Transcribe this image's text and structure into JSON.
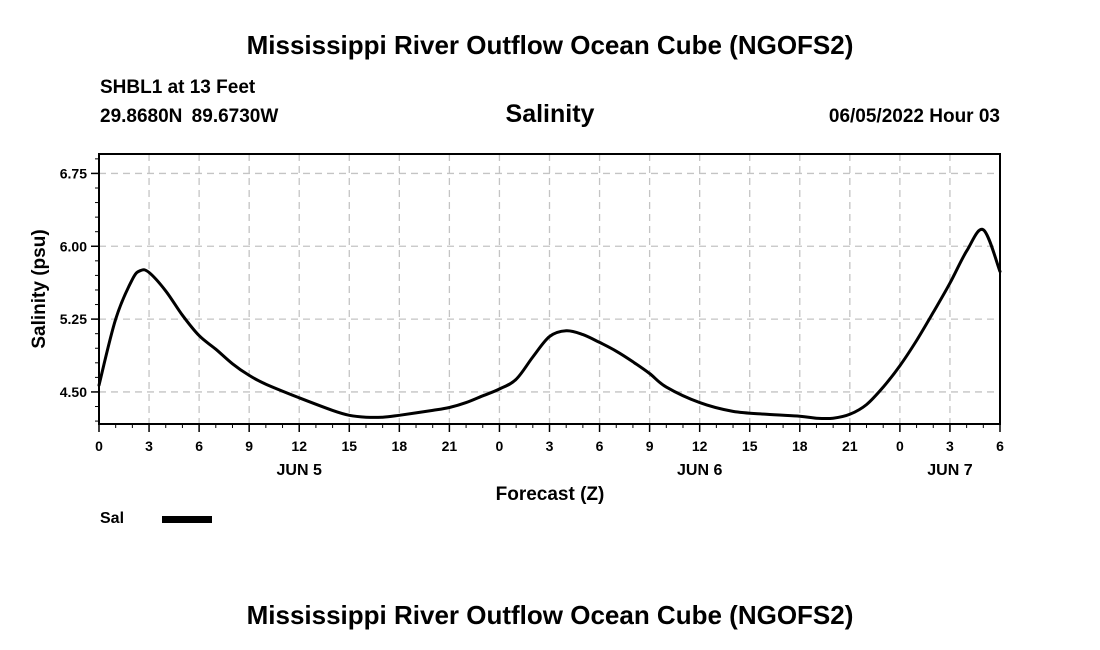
{
  "page": {
    "top_title": "Mississippi River Outflow Ocean Cube (NGOFS2)",
    "bottom_title": "Mississippi River Outflow Ocean Cube (NGOFS2)",
    "station": "SHBL1 at 13 Feet",
    "coordinates": "29.8680N  89.6730W",
    "datetime": "06/05/2022 Hour 03"
  },
  "chart_data": {
    "type": "line",
    "title": "Salinity",
    "xlabel": "Forecast (Z)",
    "ylabel": "Salinity (psu)",
    "xlim": [
      0,
      54
    ],
    "ylim": [
      4.17,
      6.95
    ],
    "x_ticks": [
      0,
      3,
      6,
      9,
      12,
      15,
      18,
      21,
      24,
      27,
      30,
      33,
      36,
      39,
      42,
      45,
      48,
      51,
      54
    ],
    "x_tick_labels": [
      "0",
      "3",
      "6",
      "9",
      "12",
      "15",
      "18",
      "21",
      "0",
      "3",
      "6",
      "9",
      "12",
      "15",
      "18",
      "21",
      "0",
      "3",
      "6"
    ],
    "y_ticks": [
      4.5,
      5.25,
      6.0,
      6.75
    ],
    "y_tick_labels": [
      "4.50",
      "5.25",
      "6.00",
      "6.75"
    ],
    "date_labels": [
      {
        "x": 12,
        "label": "JUN 5"
      },
      {
        "x": 36,
        "label": "JUN 6"
      },
      {
        "x": 51,
        "label": "JUN 7"
      }
    ],
    "grid": true,
    "series": [
      {
        "name": "Sal",
        "x": [
          0,
          1,
          2,
          2.5,
          3,
          4,
          5,
          6,
          7,
          8,
          9,
          10,
          12,
          14,
          15,
          16,
          17,
          18,
          20,
          21,
          22,
          23,
          24,
          25,
          26,
          27,
          28,
          29,
          30,
          31,
          32,
          33,
          34,
          36,
          38,
          40,
          42,
          43,
          44,
          45,
          46,
          47,
          48,
          49,
          50,
          51,
          52,
          53,
          54
        ],
        "values": [
          4.57,
          5.25,
          5.66,
          5.75,
          5.73,
          5.54,
          5.29,
          5.08,
          4.94,
          4.79,
          4.67,
          4.58,
          4.44,
          4.31,
          4.26,
          4.24,
          4.24,
          4.26,
          4.31,
          4.34,
          4.39,
          4.46,
          4.53,
          4.63,
          4.86,
          5.07,
          5.13,
          5.09,
          5.01,
          4.92,
          4.81,
          4.69,
          4.55,
          4.39,
          4.3,
          4.27,
          4.25,
          4.23,
          4.23,
          4.27,
          4.37,
          4.55,
          4.77,
          5.03,
          5.32,
          5.62,
          5.95,
          6.17,
          5.74
        ]
      }
    ],
    "legend": [
      {
        "label": "Sal",
        "position": "bottom-left"
      }
    ]
  }
}
